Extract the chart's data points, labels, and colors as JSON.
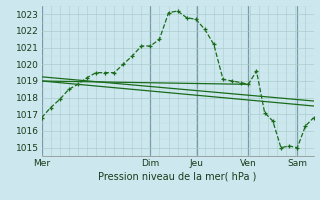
{
  "xlabel": "Pression niveau de la mer( hPa )",
  "background_color": "#cce8ee",
  "grid_color_major": "#aacccc",
  "grid_color_minor": "#bbdddd",
  "line_color": "#1a6b1a",
  "vline_color": "#7799aa",
  "ylim": [
    1014.5,
    1023.5
  ],
  "yticks": [
    1015,
    1016,
    1017,
    1018,
    1019,
    1020,
    1021,
    1022,
    1023
  ],
  "day_labels": [
    "Mer",
    "Dim",
    "Jeu",
    "Ven",
    "Sam"
  ],
  "day_positions": [
    0.0,
    0.4,
    0.57,
    0.76,
    0.94
  ],
  "day_vline_x": [
    0.0,
    0.4,
    0.57,
    0.76,
    0.94
  ],
  "xlim": [
    0.0,
    1.0
  ],
  "main_line_x": [
    0.0,
    0.033,
    0.067,
    0.1,
    0.133,
    0.167,
    0.2,
    0.233,
    0.267,
    0.3,
    0.333,
    0.367,
    0.4,
    0.433,
    0.467,
    0.5,
    0.533,
    0.567,
    0.6,
    0.633,
    0.667,
    0.7,
    0.733,
    0.76,
    0.79,
    0.82,
    0.85,
    0.88,
    0.91,
    0.94,
    0.97,
    1.0
  ],
  "main_line_y": [
    1016.8,
    1017.4,
    1017.9,
    1018.5,
    1018.8,
    1019.2,
    1019.5,
    1019.5,
    1019.5,
    1020.0,
    1020.5,
    1021.1,
    1021.1,
    1021.5,
    1023.1,
    1023.2,
    1022.8,
    1022.7,
    1022.1,
    1021.2,
    1019.1,
    1019.0,
    1018.9,
    1018.8,
    1019.6,
    1017.1,
    1016.6,
    1015.0,
    1015.1,
    1015.0,
    1016.3,
    1016.8
  ],
  "trend_line1_x": [
    0.0,
    1.0
  ],
  "trend_line1_y": [
    1019.0,
    1017.5
  ],
  "trend_line2_x": [
    0.0,
    1.0
  ],
  "trend_line2_y": [
    1019.25,
    1017.8
  ],
  "trend_line3_x": [
    0.0,
    0.76
  ],
  "trend_line3_y": [
    1019.0,
    1018.8
  ]
}
